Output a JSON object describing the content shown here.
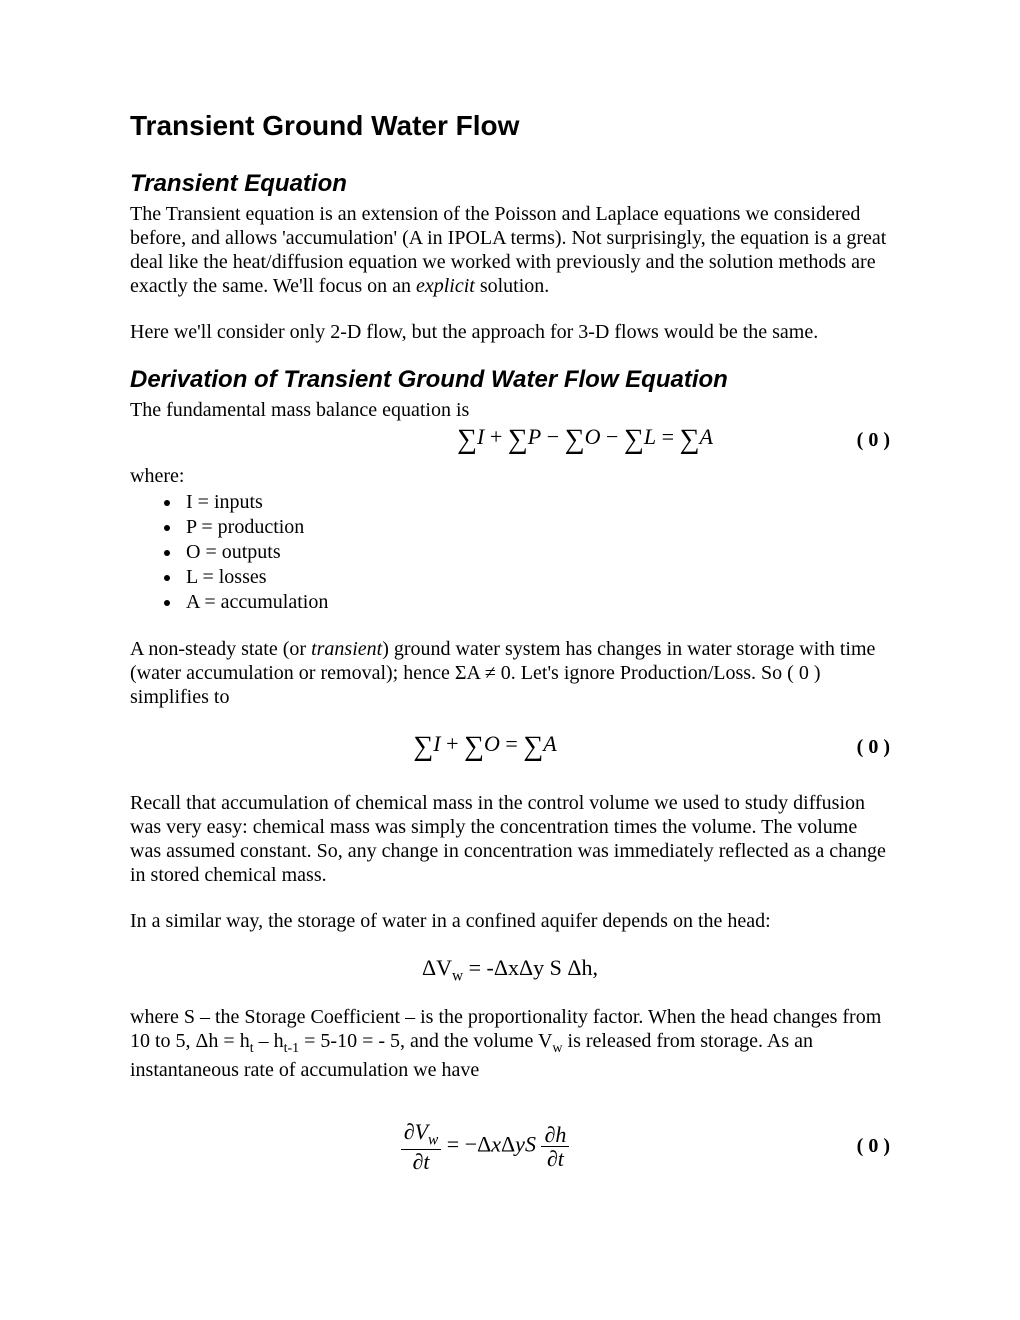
{
  "colors": {
    "text": "#000000",
    "background": "#ffffff"
  },
  "fonts": {
    "heading": "Arial",
    "body": "Times New Roman",
    "h1_size": 28,
    "h2_size": 24,
    "body_size": 20
  },
  "h1": "Transient Ground Water Flow",
  "section1": {
    "title": "Transient Equation",
    "para1_html": "The Transient equation is an extension of the Poisson and Laplace equations we considered before, and allows 'accumulation' (A in IPOLA terms). Not surprisingly, the equation is a great deal like the heat/diffusion equation we worked with previously and the solution methods are exactly the same. We'll focus on an <span class=\"ital\">explicit</span> solution.",
    "para2": "Here we'll consider only 2-D flow, but the approach for 3-D flows would be the same."
  },
  "section2": {
    "title": "Derivation of Transient Ground Water Flow Equation",
    "para1": "The fundamental mass balance equation is",
    "eq1_html": "<span class=\"sigma\">∑</span><span class=\"ital\">I</span> + <span class=\"sigma\">∑</span><span class=\"ital\">P</span> − <span class=\"sigma\">∑</span><span class=\"ital\">O</span> − <span class=\"sigma\">∑</span><span class=\"ital\">L</span> = <span class=\"sigma\">∑</span><span class=\"ital\">A</span>",
    "eq1_num": "( 0 )",
    "where": "where:",
    "bullets": [
      "I = inputs",
      "P = production",
      "O = outputs",
      "L = losses",
      "A = accumulation"
    ],
    "para2_html": "A non-steady state (or <span class=\"ital\">transient</span>) ground water system has changes in water storage with time (water accumulation or removal); hence ΣA ≠ 0. Let's ignore Production/Loss. So ( 0 ) simplifies to",
    "eq2_html": "<span class=\"sigma\">∑</span><span class=\"ital\">I</span> + <span class=\"sigma\">∑</span><span class=\"ital\">O</span> = <span class=\"sigma\">∑</span><span class=\"ital\">A</span>",
    "eq2_num": "( 0 )",
    "para3": "Recall that accumulation of chemical mass in the control volume we used to study diffusion was very easy: chemical mass was simply the concentration times the volume. The volume was assumed constant. So, any change in concentration was immediately reflected as a change in stored chemical mass.",
    "para4": "In a similar way, the storage of water in a confined aquifer depends on the head:",
    "eq3_html": "ΔV<sub>w</sub> = -ΔxΔy S Δh,",
    "para5_html": "where S – the Storage Coefficient – is the proportionality factor. When the head changes from 10 to 5, Δh = h<sub>t</sub> – h<sub>t-1</sub> = 5-10 = - 5, and the volume V<sub>w</sub> is released from storage. As an instantaneous rate of accumulation we have",
    "eq4_html": "<span class=\"frac\"><span class=\"num\">∂<span class=\"ital\">V<sub>w</sub></span></span><span class=\"den\">∂<span class=\"ital\">t</span></span></span> = −Δ<span class=\"ital\">x</span>Δ<span class=\"ital\">y</span><span class=\"ital\">S</span> <span class=\"frac\"><span class=\"num\">∂<span class=\"ital\">h</span></span><span class=\"den\">∂<span class=\"ital\">t</span></span></span>",
    "eq4_num": "( 0 )"
  }
}
